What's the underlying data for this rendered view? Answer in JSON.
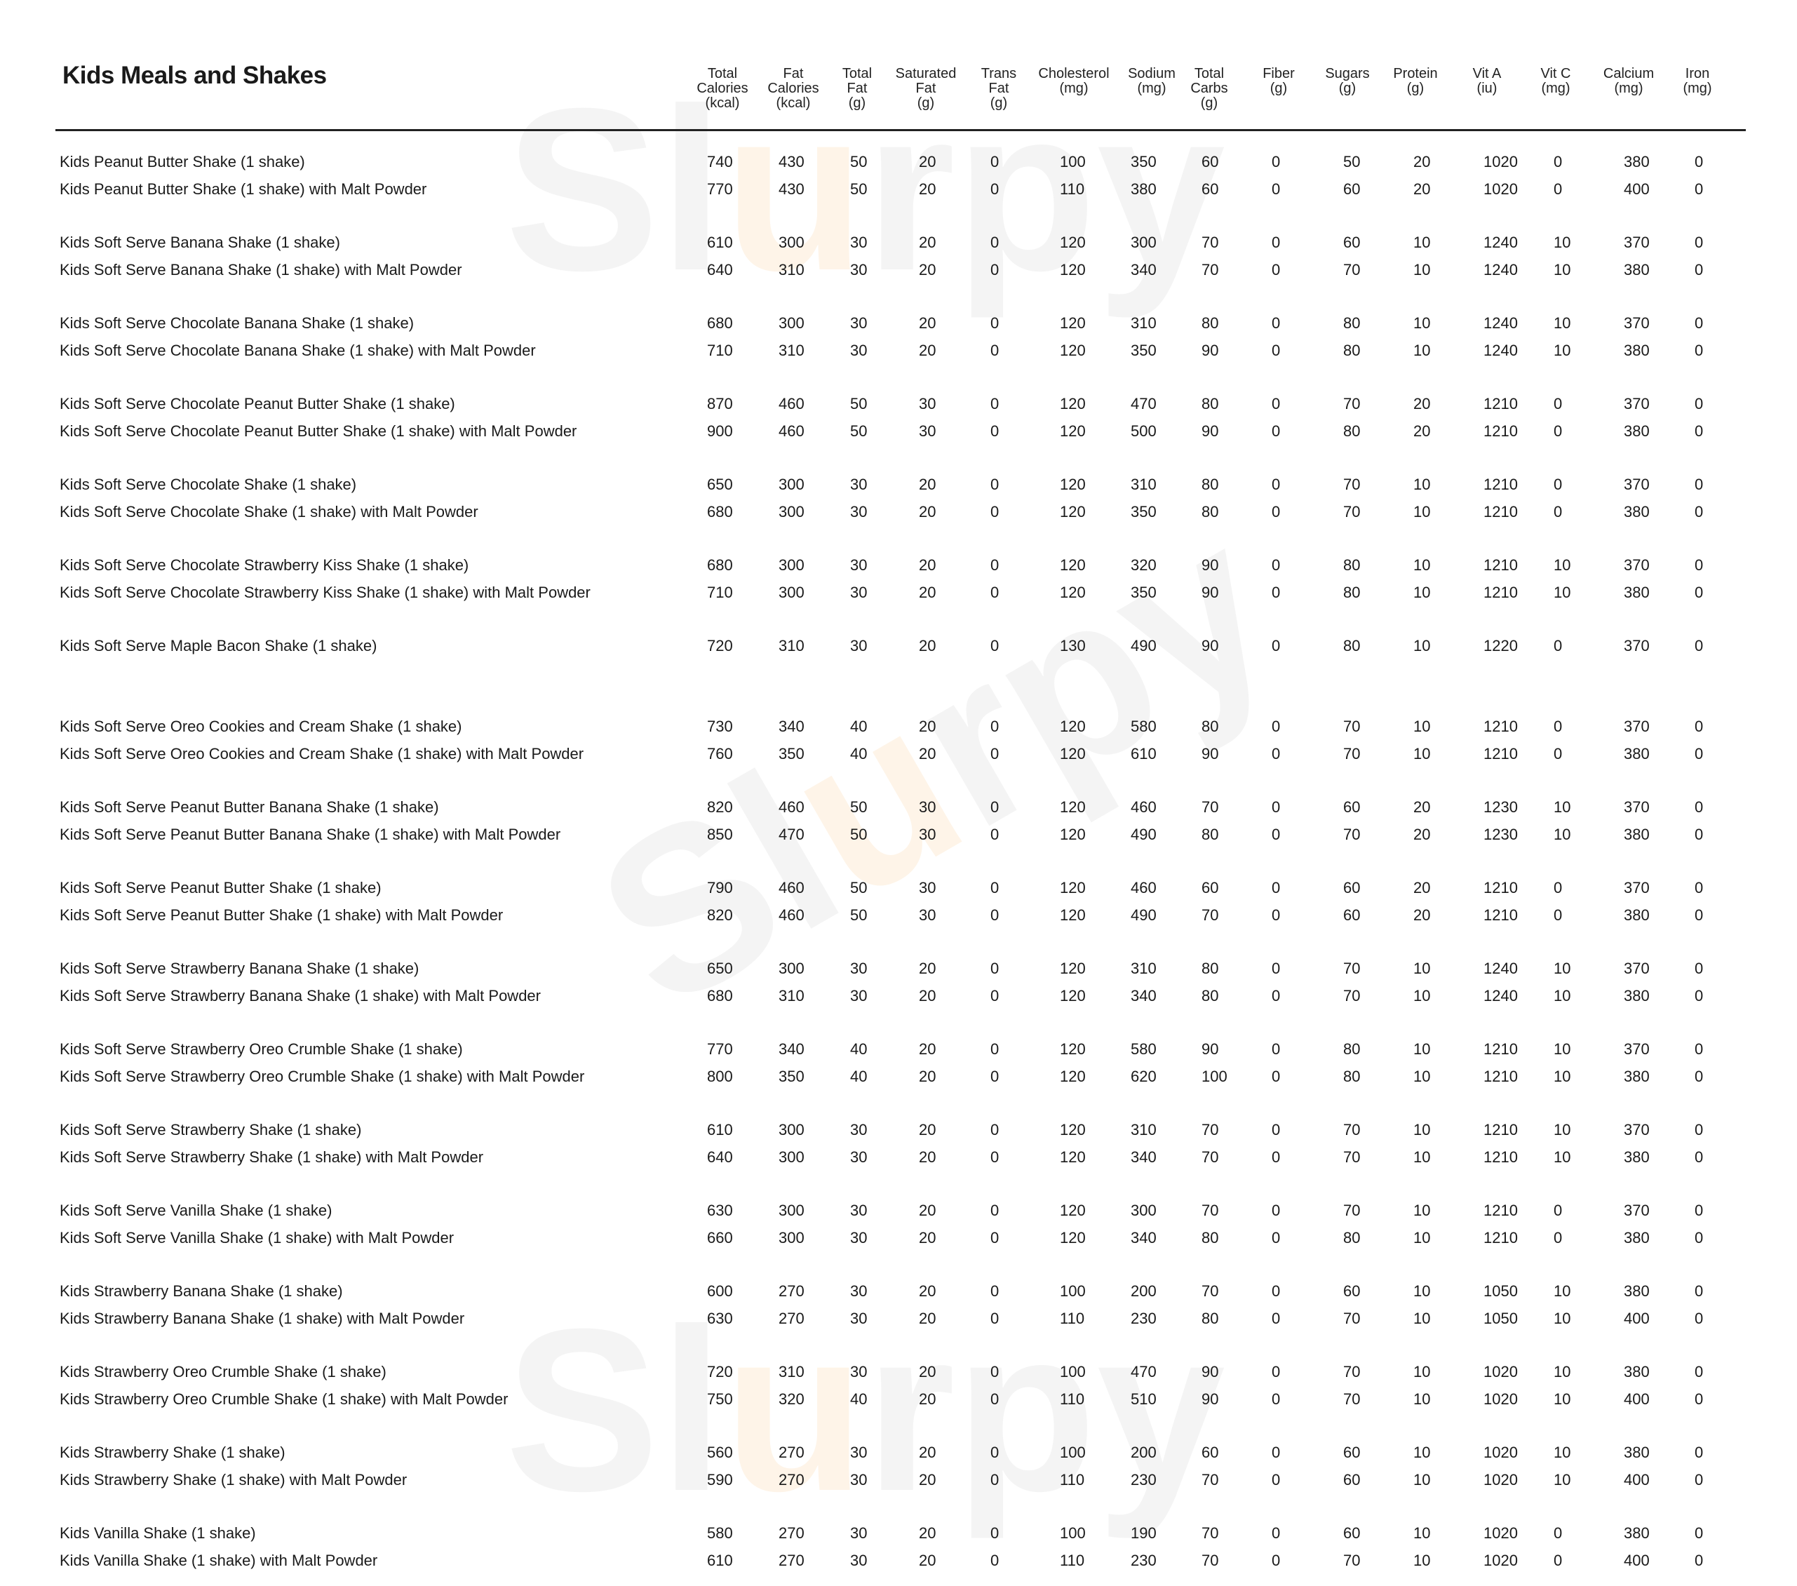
{
  "title": "Kids Meals and Shakes",
  "columns": [
    "Total\nCalories\n(kcal)",
    "Fat\nCalories\n(kcal)",
    "Total\nFat\n(g)",
    "Saturated\nFat\n(g)",
    "Trans\nFat\n(g)",
    "Cholesterol\n(mg)",
    "Sodium\n(mg)",
    "Total\nCarbs\n(g)",
    "Fiber\n(g)",
    "Sugars\n(g)",
    "Protein\n(g)",
    "Vit A\n(iu)",
    "Vit C\n(mg)",
    "Calcium\n(mg)",
    "Iron\n(mg)"
  ],
  "groups": [
    [
      [
        "Kids Peanut Butter Shake (1 shake)",
        [
          740,
          430,
          50,
          20,
          0,
          100,
          350,
          60,
          0,
          50,
          20,
          1020,
          0,
          380,
          0
        ]
      ],
      [
        "Kids Peanut Butter Shake (1 shake) with Malt Powder",
        [
          770,
          430,
          50,
          20,
          0,
          110,
          380,
          60,
          0,
          60,
          20,
          1020,
          0,
          400,
          0
        ]
      ]
    ],
    [
      [
        "Kids Soft Serve Banana Shake (1 shake)",
        [
          610,
          300,
          30,
          20,
          0,
          120,
          300,
          70,
          0,
          60,
          10,
          1240,
          10,
          370,
          0
        ]
      ],
      [
        "Kids Soft Serve Banana Shake (1 shake) with Malt Powder",
        [
          640,
          310,
          30,
          20,
          0,
          120,
          340,
          70,
          0,
          70,
          10,
          1240,
          10,
          380,
          0
        ]
      ]
    ],
    [
      [
        "Kids Soft Serve Chocolate Banana Shake (1 shake)",
        [
          680,
          300,
          30,
          20,
          0,
          120,
          310,
          80,
          0,
          80,
          10,
          1240,
          10,
          370,
          0
        ]
      ],
      [
        "Kids Soft Serve Chocolate Banana Shake (1 shake) with Malt Powder",
        [
          710,
          310,
          30,
          20,
          0,
          120,
          350,
          90,
          0,
          80,
          10,
          1240,
          10,
          380,
          0
        ]
      ]
    ],
    [
      [
        "Kids Soft Serve Chocolate Peanut Butter Shake (1 shake)",
        [
          870,
          460,
          50,
          30,
          0,
          120,
          470,
          80,
          0,
          70,
          20,
          1210,
          0,
          370,
          0
        ]
      ],
      [
        "Kids Soft Serve Chocolate Peanut Butter Shake (1 shake) with Malt Powder",
        [
          900,
          460,
          50,
          30,
          0,
          120,
          500,
          90,
          0,
          80,
          20,
          1210,
          0,
          380,
          0
        ]
      ]
    ],
    [
      [
        "Kids Soft Serve Chocolate Shake (1 shake)",
        [
          650,
          300,
          30,
          20,
          0,
          120,
          310,
          80,
          0,
          70,
          10,
          1210,
          0,
          370,
          0
        ]
      ],
      [
        "Kids Soft Serve Chocolate Shake (1 shake) with Malt Powder",
        [
          680,
          300,
          30,
          20,
          0,
          120,
          350,
          80,
          0,
          70,
          10,
          1210,
          0,
          380,
          0
        ]
      ]
    ],
    [
      [
        "Kids Soft Serve Chocolate Strawberry Kiss Shake (1 shake)",
        [
          680,
          300,
          30,
          20,
          0,
          120,
          320,
          90,
          0,
          80,
          10,
          1210,
          10,
          370,
          0
        ]
      ],
      [
        "Kids Soft Serve Chocolate Strawberry Kiss Shake (1 shake) with Malt Powder",
        [
          710,
          300,
          30,
          20,
          0,
          120,
          350,
          90,
          0,
          80,
          10,
          1210,
          10,
          380,
          0
        ]
      ]
    ],
    [
      [
        "Kids Soft Serve Maple Bacon Shake (1 shake)",
        [
          720,
          310,
          30,
          20,
          0,
          130,
          490,
          90,
          0,
          80,
          10,
          1220,
          0,
          370,
          0
        ]
      ]
    ],
    [
      [
        "Kids Soft Serve Oreo Cookies and Cream Shake (1 shake)",
        [
          730,
          340,
          40,
          20,
          0,
          120,
          580,
          80,
          0,
          70,
          10,
          1210,
          0,
          370,
          0
        ]
      ],
      [
        "Kids Soft Serve Oreo Cookies and Cream Shake (1 shake) with Malt Powder",
        [
          760,
          350,
          40,
          20,
          0,
          120,
          610,
          90,
          0,
          70,
          10,
          1210,
          0,
          380,
          0
        ]
      ]
    ],
    [
      [
        "Kids Soft Serve Peanut Butter Banana Shake (1 shake)",
        [
          820,
          460,
          50,
          30,
          0,
          120,
          460,
          70,
          0,
          60,
          20,
          1230,
          10,
          370,
          0
        ]
      ],
      [
        "Kids Soft Serve Peanut Butter Banana Shake (1 shake) with Malt Powder",
        [
          850,
          470,
          50,
          30,
          0,
          120,
          490,
          80,
          0,
          70,
          20,
          1230,
          10,
          380,
          0
        ]
      ]
    ],
    [
      [
        "Kids Soft Serve Peanut Butter Shake (1 shake)",
        [
          790,
          460,
          50,
          30,
          0,
          120,
          460,
          60,
          0,
          60,
          20,
          1210,
          0,
          370,
          0
        ]
      ],
      [
        "Kids Soft Serve Peanut Butter Shake (1 shake) with Malt Powder",
        [
          820,
          460,
          50,
          30,
          0,
          120,
          490,
          70,
          0,
          60,
          20,
          1210,
          0,
          380,
          0
        ]
      ]
    ],
    [
      [
        "Kids Soft Serve Strawberry Banana Shake (1 shake)",
        [
          650,
          300,
          30,
          20,
          0,
          120,
          310,
          80,
          0,
          70,
          10,
          1240,
          10,
          370,
          0
        ]
      ],
      [
        "Kids Soft Serve Strawberry Banana Shake (1 shake) with Malt Powder",
        [
          680,
          310,
          30,
          20,
          0,
          120,
          340,
          80,
          0,
          70,
          10,
          1240,
          10,
          380,
          0
        ]
      ]
    ],
    [
      [
        "Kids Soft Serve Strawberry Oreo Crumble Shake (1 shake)",
        [
          770,
          340,
          40,
          20,
          0,
          120,
          580,
          90,
          0,
          80,
          10,
          1210,
          10,
          370,
          0
        ]
      ],
      [
        "Kids Soft Serve Strawberry Oreo Crumble Shake (1 shake) with Malt Powder",
        [
          800,
          350,
          40,
          20,
          0,
          120,
          620,
          100,
          0,
          80,
          10,
          1210,
          10,
          380,
          0
        ]
      ]
    ],
    [
      [
        "Kids Soft Serve Strawberry Shake (1 shake)",
        [
          610,
          300,
          30,
          20,
          0,
          120,
          310,
          70,
          0,
          70,
          10,
          1210,
          10,
          370,
          0
        ]
      ],
      [
        "Kids Soft Serve Strawberry Shake (1 shake) with Malt Powder",
        [
          640,
          300,
          30,
          20,
          0,
          120,
          340,
          70,
          0,
          70,
          10,
          1210,
          10,
          380,
          0
        ]
      ]
    ],
    [
      [
        "Kids Soft Serve Vanilla Shake (1 shake)",
        [
          630,
          300,
          30,
          20,
          0,
          120,
          300,
          70,
          0,
          70,
          10,
          1210,
          0,
          370,
          0
        ]
      ],
      [
        "Kids Soft Serve Vanilla Shake (1 shake) with Malt Powder",
        [
          660,
          300,
          30,
          20,
          0,
          120,
          340,
          80,
          0,
          80,
          10,
          1210,
          0,
          380,
          0
        ]
      ]
    ],
    [
      [
        "Kids Strawberry Banana Shake (1 shake)",
        [
          600,
          270,
          30,
          20,
          0,
          100,
          200,
          70,
          0,
          60,
          10,
          1050,
          10,
          380,
          0
        ]
      ],
      [
        "Kids Strawberry Banana Shake (1 shake) with Malt Powder",
        [
          630,
          270,
          30,
          20,
          0,
          110,
          230,
          80,
          0,
          70,
          10,
          1050,
          10,
          400,
          0
        ]
      ]
    ],
    [
      [
        "Kids Strawberry Oreo Crumble Shake (1 shake)",
        [
          720,
          310,
          30,
          20,
          0,
          100,
          470,
          90,
          0,
          70,
          10,
          1020,
          10,
          380,
          0
        ]
      ],
      [
        "Kids Strawberry Oreo Crumble Shake (1 shake) with Malt Powder",
        [
          750,
          320,
          40,
          20,
          0,
          110,
          510,
          90,
          0,
          70,
          10,
          1020,
          10,
          400,
          0
        ]
      ]
    ],
    [
      [
        "Kids Strawberry Shake (1 shake)",
        [
          560,
          270,
          30,
          20,
          0,
          100,
          200,
          60,
          0,
          60,
          10,
          1020,
          10,
          380,
          0
        ]
      ],
      [
        "Kids Strawberry Shake (1 shake) with Malt Powder",
        [
          590,
          270,
          30,
          20,
          0,
          110,
          230,
          70,
          0,
          60,
          10,
          1020,
          10,
          400,
          0
        ]
      ]
    ],
    [
      [
        "Kids Vanilla Shake (1 shake)",
        [
          580,
          270,
          30,
          20,
          0,
          100,
          190,
          70,
          0,
          60,
          10,
          1020,
          0,
          380,
          0
        ]
      ],
      [
        "Kids Vanilla Shake (1 shake) with Malt Powder",
        [
          610,
          270,
          30,
          20,
          0,
          110,
          230,
          70,
          0,
          70,
          10,
          1020,
          0,
          400,
          0
        ]
      ]
    ]
  ],
  "watermark": "Slurpy"
}
